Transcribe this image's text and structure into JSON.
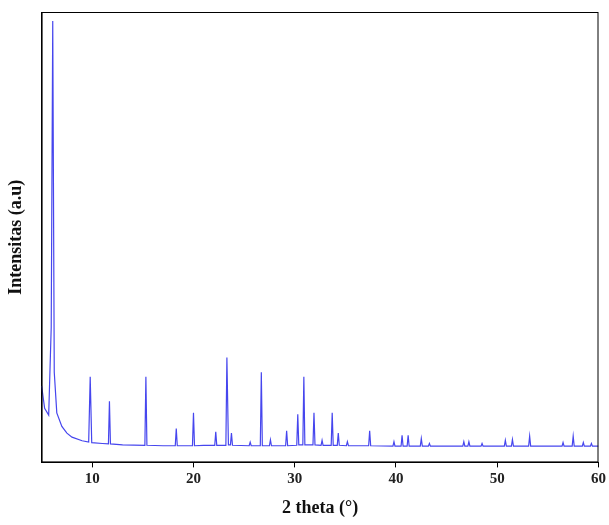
{
  "chart_data": {
    "type": "line",
    "x_label": "2 theta (°)",
    "y_label": "Intensitas (a.u)",
    "color": "#4646ee",
    "grid": false,
    "tick_labels": "x",
    "xlim": [
      5,
      60
    ],
    "xticks": [
      10,
      20,
      30,
      40,
      50,
      60
    ],
    "ylim": [
      0,
      100
    ],
    "x": [
      5.0,
      5.3,
      5.7,
      5.95,
      6.1,
      6.25,
      6.5,
      7.0,
      7.5,
      8.0,
      9.0,
      9.65,
      9.8,
      9.95,
      11.0,
      11.6,
      11.7,
      11.8,
      13.0,
      15.2,
      15.3,
      15.4,
      17.0,
      18.2,
      18.3,
      18.4,
      19.9,
      20.0,
      20.1,
      21.0,
      22.1,
      22.2,
      22.3,
      23.2,
      23.3,
      23.45,
      23.65,
      23.75,
      23.85,
      25.5,
      25.6,
      25.7,
      26.6,
      26.7,
      26.8,
      27.5,
      27.6,
      27.7,
      29.1,
      29.2,
      29.3,
      30.2,
      30.3,
      30.4,
      30.8,
      30.9,
      31.0,
      31.8,
      31.9,
      32.0,
      32.6,
      32.7,
      32.8,
      33.6,
      33.7,
      33.8,
      34.2,
      34.3,
      34.4,
      35.1,
      35.2,
      35.3,
      37.3,
      37.4,
      37.5,
      39.7,
      39.8,
      39.9,
      40.5,
      40.6,
      40.7,
      41.1,
      41.2,
      41.3,
      42.4,
      42.5,
      42.6,
      43.2,
      43.3,
      43.4,
      46.6,
      46.7,
      46.8,
      47.1,
      47.2,
      47.3,
      48.4,
      48.5,
      48.6,
      50.7,
      50.8,
      50.9,
      51.4,
      51.5,
      51.6,
      53.1,
      53.2,
      53.3,
      56.4,
      56.5,
      56.6,
      57.4,
      57.5,
      57.6,
      58.4,
      58.5,
      58.6,
      59.2,
      59.3,
      59.4,
      60.0
    ],
    "values": [
      17,
      12,
      10.5,
      30,
      98,
      20,
      11,
      8,
      6.5,
      5.6,
      4.8,
      4.5,
      19,
      4.4,
      4.2,
      4.1,
      13.6,
      4.1,
      3.9,
      3.8,
      19,
      3.8,
      3.7,
      3.7,
      7.5,
      3.7,
      3.7,
      11,
      3.7,
      3.8,
      3.8,
      6.8,
      3.8,
      3.8,
      23.3,
      3.9,
      3.9,
      6.5,
      3.8,
      3.7,
      4.5,
      3.7,
      3.7,
      20,
      3.7,
      3.7,
      5,
      3.7,
      3.7,
      7,
      3.7,
      3.8,
      10.7,
      3.9,
      3.9,
      19,
      3.9,
      3.9,
      11,
      3.9,
      3.8,
      4.9,
      3.8,
      3.8,
      11,
      3.8,
      3.8,
      6.5,
      3.8,
      3.7,
      4.6,
      3.7,
      3.7,
      7,
      3.7,
      3.6,
      4.6,
      3.6,
      3.6,
      6,
      3.6,
      3.6,
      6,
      3.6,
      3.6,
      5.3,
      3.6,
      3.6,
      4.2,
      3.6,
      3.6,
      4.6,
      3.6,
      3.6,
      4.6,
      3.6,
      3.6,
      4.2,
      3.6,
      3.6,
      4.9,
      3.6,
      3.6,
      5.1,
      3.6,
      3.6,
      5.8,
      3.6,
      3.6,
      4.4,
      3.6,
      3.6,
      5.8,
      3.6,
      3.6,
      4.4,
      3.6,
      3.6,
      4.2,
      3.6,
      3.6
    ]
  }
}
